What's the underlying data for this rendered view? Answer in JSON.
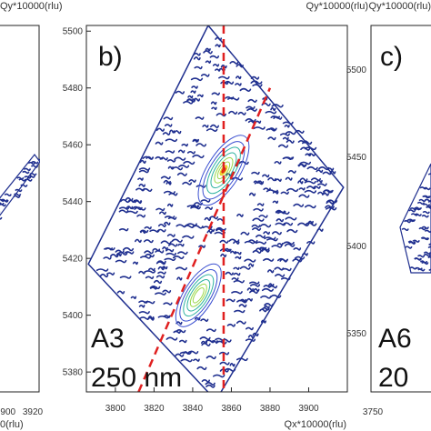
{
  "panels": {
    "left": {
      "xticks": [
        "3900",
        "3920"
      ],
      "ylabel": "Qy*10000(rlu)"
    },
    "center": {
      "panel_label": "b)",
      "sample_label": "A3",
      "thickness_label": "250 nm",
      "xlabel": "Qx*10000(rlu)",
      "ylabel": "Qy*10000(rlu)"
    },
    "right": {
      "panel_label": "c)",
      "sample_label": "A6",
      "thickness_label": "20",
      "xticks": [
        "3750"
      ],
      "yticks": [
        "5500",
        "5450",
        "5400",
        "5350"
      ],
      "ylabel": "Qy*10000(rlu)"
    }
  },
  "colors": {
    "noise": "#1f2f8f",
    "contour_outer": "#3a4fd0",
    "contour_mid": "#2fb3a0",
    "contour_inner": "#9ad84a",
    "peak_core": "#e8d020",
    "peak_hot": "#e02010",
    "dashed_line": "#e02020"
  },
  "chart_data": {
    "type": "heatmap",
    "subtype": "reciprocal space map (contour)",
    "xlabel": "Qx*10000(rlu)",
    "ylabel": "Qy*10000(rlu)",
    "xlim": [
      3785,
      3920
    ],
    "ylim": [
      5373,
      5502
    ],
    "xticks": [
      3800,
      3820,
      3840,
      3860,
      3880,
      3900
    ],
    "yticks": [
      5380,
      5400,
      5420,
      5440,
      5460,
      5480,
      5500
    ],
    "grid": false,
    "scan_region": [
      [
        3786,
        5418
      ],
      [
        3848,
        5502
      ],
      [
        3918,
        5445
      ],
      [
        3852,
        5370
      ]
    ],
    "peaks": [
      {
        "qx": 3856,
        "qy": 5451,
        "intensity": 1.0
      },
      {
        "qx": 3843,
        "qy": 5407,
        "intensity": 0.65
      }
    ],
    "lines": [
      {
        "style": "dashed",
        "from": [
          3856,
          5502
        ],
        "to": [
          3856,
          5373
        ]
      },
      {
        "style": "dashed",
        "from": [
          3812,
          5373
        ],
        "to": [
          3880,
          5480
        ]
      }
    ]
  }
}
